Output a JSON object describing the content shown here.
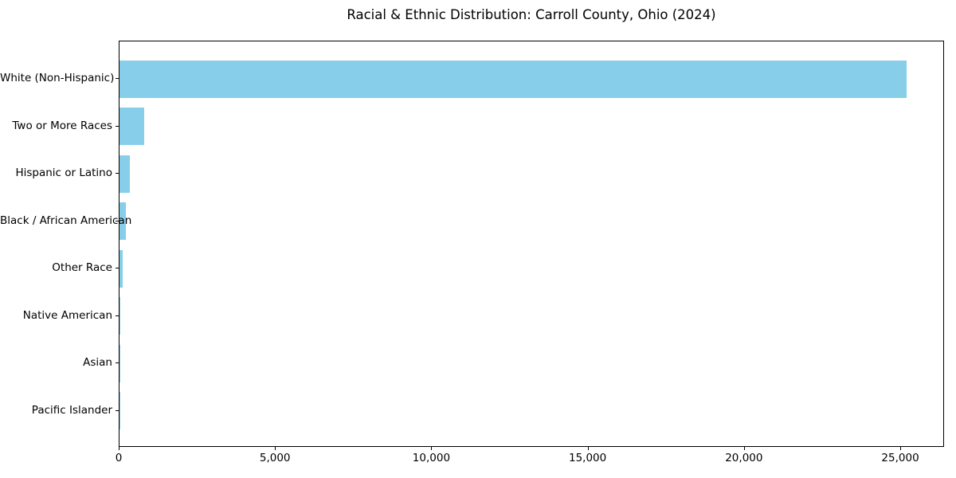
{
  "chart_data": {
    "type": "bar",
    "orientation": "horizontal",
    "title": "Racial & Ethnic Distribution: Carroll County, Ohio (2024)",
    "xlabel": "",
    "ylabel": "",
    "categories": [
      "White (Non-Hispanic)",
      "Two or More Races",
      "Hispanic or Latino",
      "Black / African American",
      "Other Race",
      "Native American",
      "Asian",
      "Pacific Islander"
    ],
    "values": [
      25170,
      800,
      340,
      210,
      90,
      20,
      12,
      5
    ],
    "bar_color": "#87CEEB",
    "xlim": [
      0,
      26400
    ],
    "x_ticks": [
      {
        "value": 0,
        "label": "0"
      },
      {
        "value": 5000,
        "label": "5,000"
      },
      {
        "value": 10000,
        "label": "10,000"
      },
      {
        "value": 15000,
        "label": "15,000"
      },
      {
        "value": 20000,
        "label": "20,000"
      },
      {
        "value": 25000,
        "label": "25,000"
      }
    ],
    "grid": false,
    "legend": null
  }
}
